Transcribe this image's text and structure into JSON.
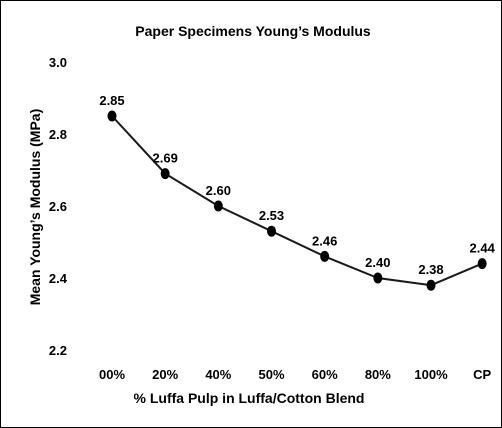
{
  "chart_data": {
    "type": "line",
    "title": "Paper Specimens Young’s Modulus",
    "xlabel": "% Luffa Pulp in Luffa/Cotton Blend",
    "ylabel": "Mean Young’s Modulus (MPa)",
    "categories": [
      "00%",
      "20%",
      "40%",
      "50%",
      "60%",
      "80%",
      "100%",
      "CP"
    ],
    "series": [
      {
        "values": [
          2.85,
          2.69,
          2.6,
          2.53,
          2.46,
          2.4,
          2.38,
          2.44
        ],
        "data_labels": [
          "2.85",
          "2.69",
          "2.60",
          "2.53",
          "2.46",
          "2.40",
          "2.38",
          "2.44"
        ]
      }
    ],
    "ylim": [
      2.2,
      3.0
    ],
    "yticks": [
      "2.2",
      "2.4",
      "2.6",
      "2.8",
      "3.0"
    ],
    "grid": false,
    "legend": "none",
    "colors": {
      "line": "#1a1a1a",
      "marker": "#000000",
      "text": "#000000",
      "border": "#000000"
    }
  }
}
